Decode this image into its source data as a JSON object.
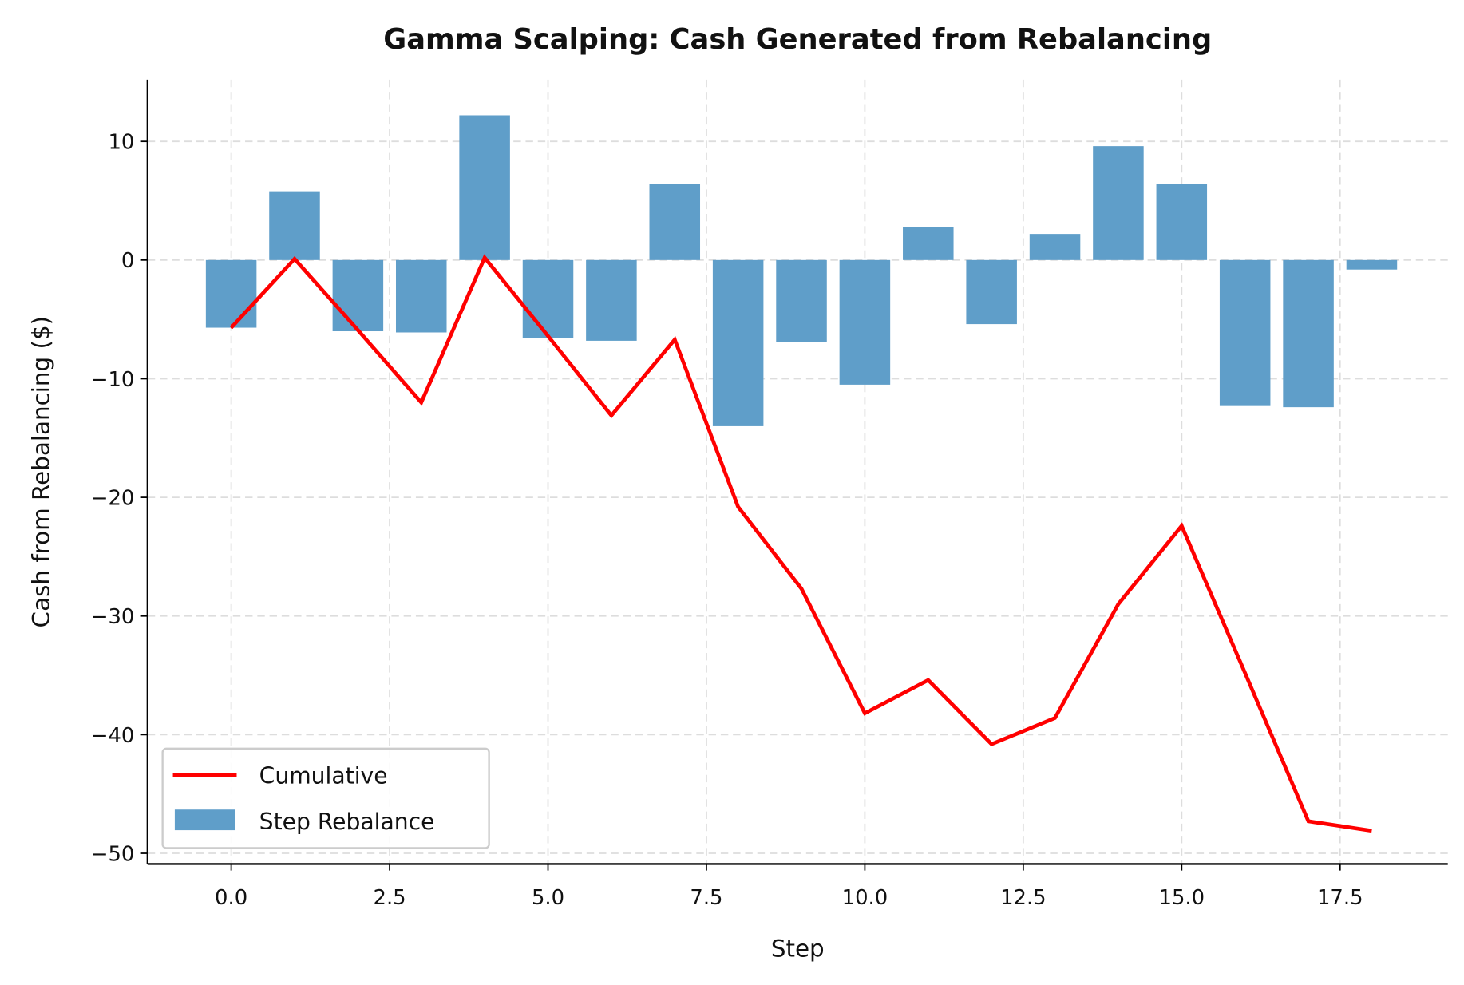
{
  "chart_data": {
    "type": "bar",
    "title": "Gamma Scalping: Cash Generated from Rebalancing",
    "xlabel": "Step",
    "ylabel": "Cash from Rebalancing ($)",
    "xlim": [
      -1.32,
      19.2
    ],
    "ylim": [
      -50.9,
      15.2
    ],
    "xticks": [
      0.0,
      2.5,
      5.0,
      7.5,
      10.0,
      12.5,
      15.0,
      17.5
    ],
    "xtick_labels": [
      "0.0",
      "2.5",
      "5.0",
      "7.5",
      "10.0",
      "12.5",
      "15.0",
      "17.5"
    ],
    "yticks": [
      10,
      0,
      -10,
      -20,
      -30,
      -40,
      -50
    ],
    "ytick_labels": [
      "10",
      "0",
      "−10",
      "−20",
      "−30",
      "−40",
      "−50"
    ],
    "grid": true,
    "legend_position": "lower-left",
    "x": [
      0,
      1,
      2,
      3,
      4,
      5,
      6,
      7,
      8,
      9,
      10,
      11,
      12,
      13,
      14,
      15,
      16,
      17,
      18
    ],
    "series": [
      {
        "name": "Cumulative",
        "type": "line",
        "color": "#ff0000",
        "values": [
          -5.7,
          0.1,
          -5.9,
          -12.0,
          0.2,
          -6.4,
          -13.1,
          -6.7,
          -20.8,
          -27.7,
          -38.2,
          -35.4,
          -40.8,
          -38.6,
          -29.0,
          -22.4,
          -34.8,
          -47.3,
          -48.1
        ]
      },
      {
        "name": "Step Rebalance",
        "type": "bar",
        "color": "#5f9ec9",
        "values": [
          -5.7,
          5.8,
          -6.0,
          -6.1,
          12.2,
          -6.6,
          -6.8,
          6.4,
          -14.0,
          -6.9,
          -10.5,
          2.8,
          -5.4,
          2.2,
          9.6,
          6.4,
          -12.3,
          -12.4,
          -0.8
        ]
      }
    ]
  }
}
